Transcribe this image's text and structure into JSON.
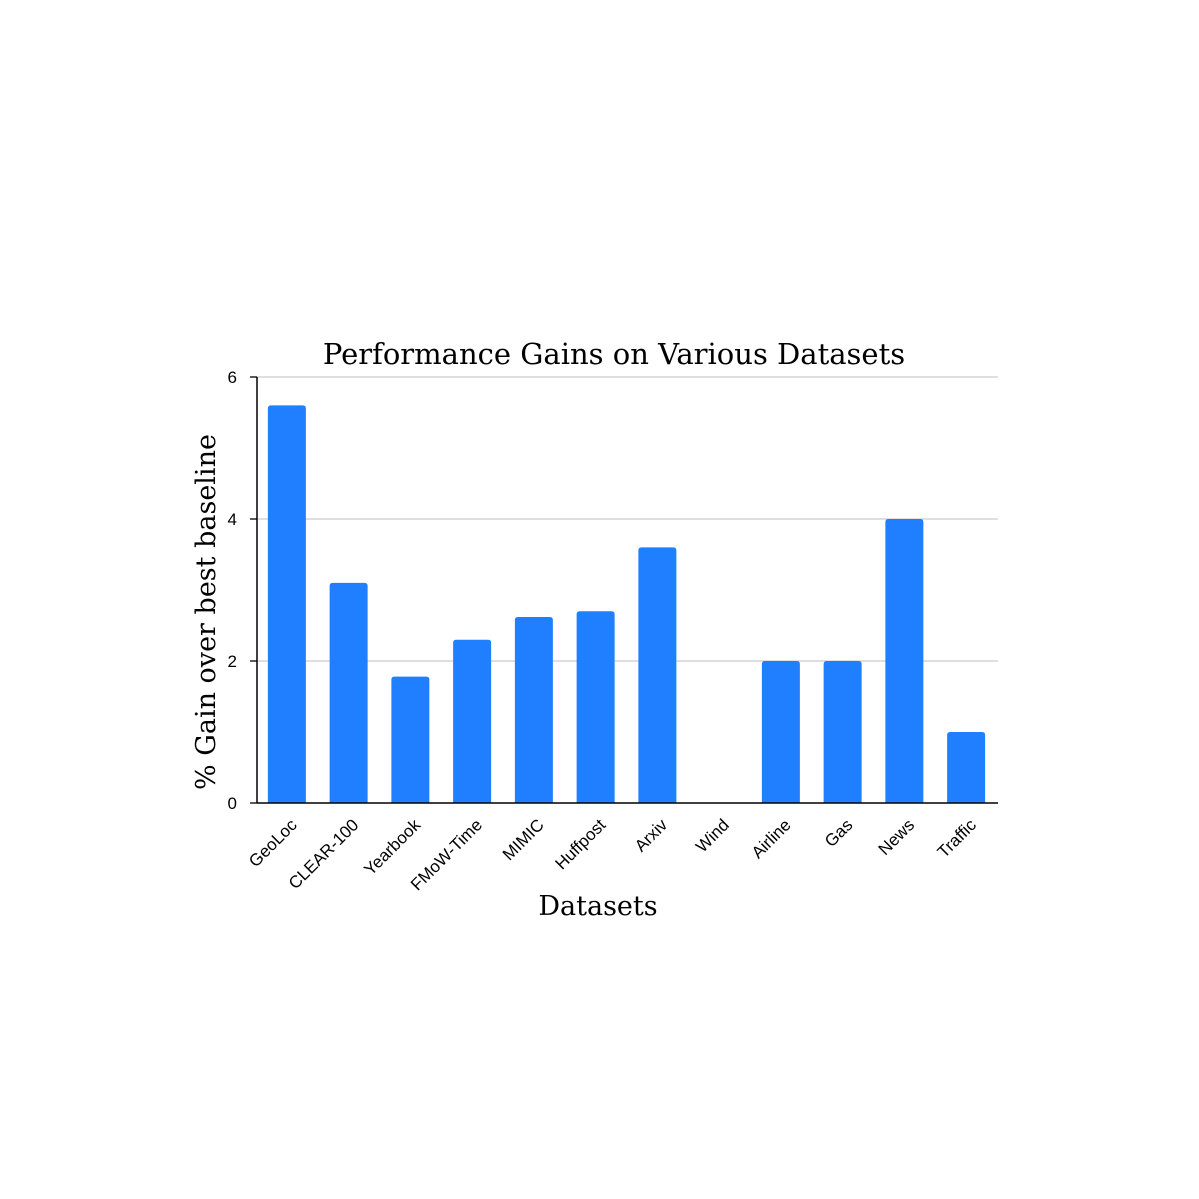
{
  "chart_data": {
    "type": "bar",
    "title": "Performance Gains on Various Datasets",
    "xlabel": "Datasets",
    "ylabel": "% Gain over best baseline",
    "categories": [
      "GeoLoc",
      "CLEAR-100",
      "Yearbook",
      "FMoW-Time",
      "MIMIC",
      "Huffpost",
      "Arxiv",
      "Wind",
      "Airline",
      "Gas",
      "News",
      "Traffic"
    ],
    "values": [
      5.6,
      3.1,
      1.78,
      2.3,
      2.62,
      2.7,
      3.6,
      0,
      2.0,
      2.0,
      4.0,
      1.0
    ],
    "ylim": [
      0,
      6
    ],
    "yticks": [
      0,
      2,
      4,
      6
    ],
    "grid": true,
    "bar_color": "#1f7fff",
    "grid_color": "#cccccc",
    "axis_color": "#000000"
  }
}
